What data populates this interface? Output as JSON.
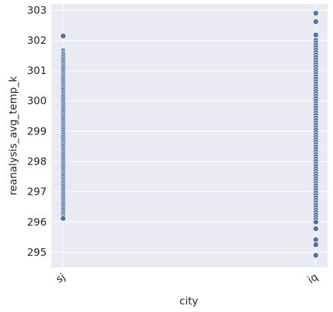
{
  "chart_data": {
    "type": "scatter",
    "title": "",
    "xlabel": "city",
    "ylabel": "reanalysis_avg_temp_k",
    "categories": [
      "sj",
      "iq"
    ],
    "ylim": [
      294.5,
      303.2
    ],
    "yticks": [
      295,
      296,
      297,
      298,
      299,
      300,
      301,
      302,
      303
    ],
    "grid": true,
    "legend": "none",
    "colors": {
      "background": "#eaeaf2",
      "grid": "#ffffff",
      "point": "#4c72b0",
      "point_edge": "#ffffff"
    },
    "series": [
      {
        "category": "sj",
        "values": [
          302.15,
          301.66,
          301.6,
          301.55,
          301.5,
          301.44,
          301.38,
          301.32,
          301.26,
          301.2,
          301.14,
          301.08,
          301.02,
          300.96,
          300.9,
          300.84,
          300.78,
          300.72,
          300.66,
          300.6,
          300.54,
          300.48,
          300.42,
          300.36,
          300.3,
          300.24,
          300.18,
          300.12,
          300.06,
          300.0,
          299.94,
          299.88,
          299.82,
          299.76,
          299.7,
          299.64,
          299.58,
          299.52,
          299.46,
          299.4,
          299.34,
          299.28,
          299.22,
          299.16,
          299.1,
          299.04,
          298.98,
          298.92,
          298.86,
          298.8,
          298.74,
          298.68,
          298.62,
          298.56,
          298.5,
          298.44,
          298.38,
          298.32,
          298.26,
          298.2,
          298.14,
          298.08,
          298.02,
          297.96,
          297.9,
          297.84,
          297.78,
          297.72,
          297.66,
          297.6,
          297.54,
          297.48,
          297.42,
          297.36,
          297.3,
          297.24,
          297.18,
          297.12,
          297.06,
          297.0,
          296.94,
          296.88,
          296.82,
          296.76,
          296.7,
          296.64,
          296.58,
          296.52,
          296.46,
          296.4,
          296.34,
          296.28,
          296.22,
          296.16,
          296.12
        ]
      },
      {
        "category": "iq",
        "values": [
          302.9,
          302.62,
          302.18,
          302.0,
          301.92,
          301.84,
          301.76,
          301.68,
          301.6,
          301.52,
          301.44,
          301.36,
          301.28,
          301.2,
          301.12,
          301.04,
          300.96,
          300.88,
          300.8,
          300.72,
          300.64,
          300.56,
          300.48,
          300.4,
          300.32,
          300.24,
          300.16,
          300.08,
          300.0,
          299.92,
          299.84,
          299.76,
          299.68,
          299.6,
          299.52,
          299.44,
          299.36,
          299.28,
          299.2,
          299.12,
          299.04,
          298.96,
          298.88,
          298.8,
          298.72,
          298.64,
          298.56,
          298.48,
          298.4,
          298.32,
          298.24,
          298.16,
          298.08,
          298.0,
          297.92,
          297.84,
          297.76,
          297.68,
          297.6,
          297.52,
          297.44,
          297.36,
          297.28,
          297.2,
          297.12,
          297.04,
          296.96,
          296.88,
          296.8,
          296.72,
          296.64,
          296.56,
          296.48,
          296.4,
          296.32,
          296.24,
          296.16,
          296.08,
          296.0,
          295.78,
          295.42,
          295.25,
          294.9
        ]
      }
    ]
  }
}
